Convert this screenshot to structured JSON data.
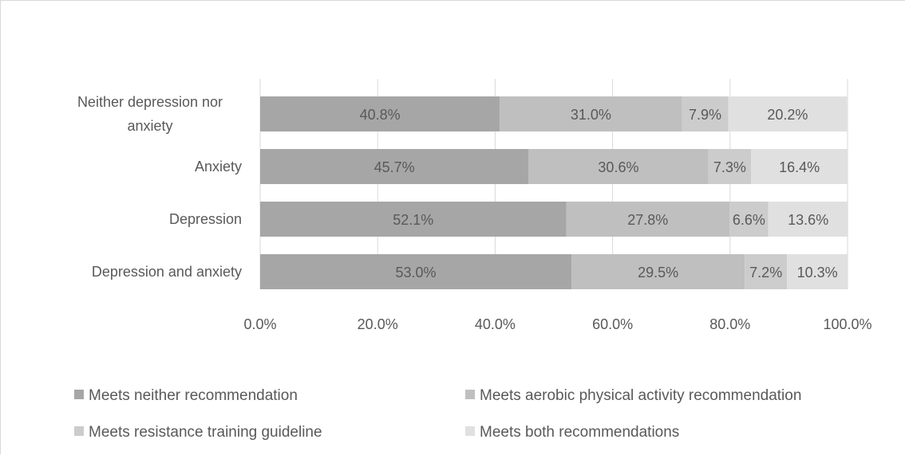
{
  "chart_data": {
    "type": "bar",
    "orientation": "horizontal",
    "stacked": true,
    "title": "",
    "xlabel": "",
    "ylabel": "",
    "xlim": [
      0,
      100
    ],
    "x_ticks": [
      "0.0%",
      "20.0%",
      "40.0%",
      "60.0%",
      "80.0%",
      "100.0%"
    ],
    "grid": true,
    "legend_position": "bottom",
    "categories": [
      [
        "Neither depression nor",
        "anxiety"
      ],
      [
        "Anxiety"
      ],
      [
        "Depression"
      ],
      [
        "Depression and anxiety"
      ]
    ],
    "series": [
      {
        "name": "Meets neither recommendation",
        "color": "#a6a6a6",
        "values": [
          40.8,
          45.7,
          52.1,
          53.0
        ],
        "labels": [
          "40.8%",
          "45.7%",
          "52.1%",
          "53.0%"
        ]
      },
      {
        "name": "Meets aerobic physical activity recommendation",
        "color": "#bfbfbf",
        "values": [
          31.0,
          30.6,
          27.8,
          29.5
        ],
        "labels": [
          "31.0%",
          "30.6%",
          "27.8%",
          "29.5%"
        ]
      },
      {
        "name": "Meets resistance training guideline",
        "color": "#cccccc",
        "values": [
          7.9,
          7.3,
          6.6,
          7.2
        ],
        "labels": [
          "7.9%",
          "7.3%",
          "6.6%",
          "7.2%"
        ]
      },
      {
        "name": "Meets both recommendations",
        "color": "#e0e0e0",
        "values": [
          20.2,
          16.4,
          13.6,
          10.3
        ],
        "labels": [
          "20.2%",
          "16.4%",
          "13.6%",
          "10.3%"
        ]
      }
    ]
  }
}
